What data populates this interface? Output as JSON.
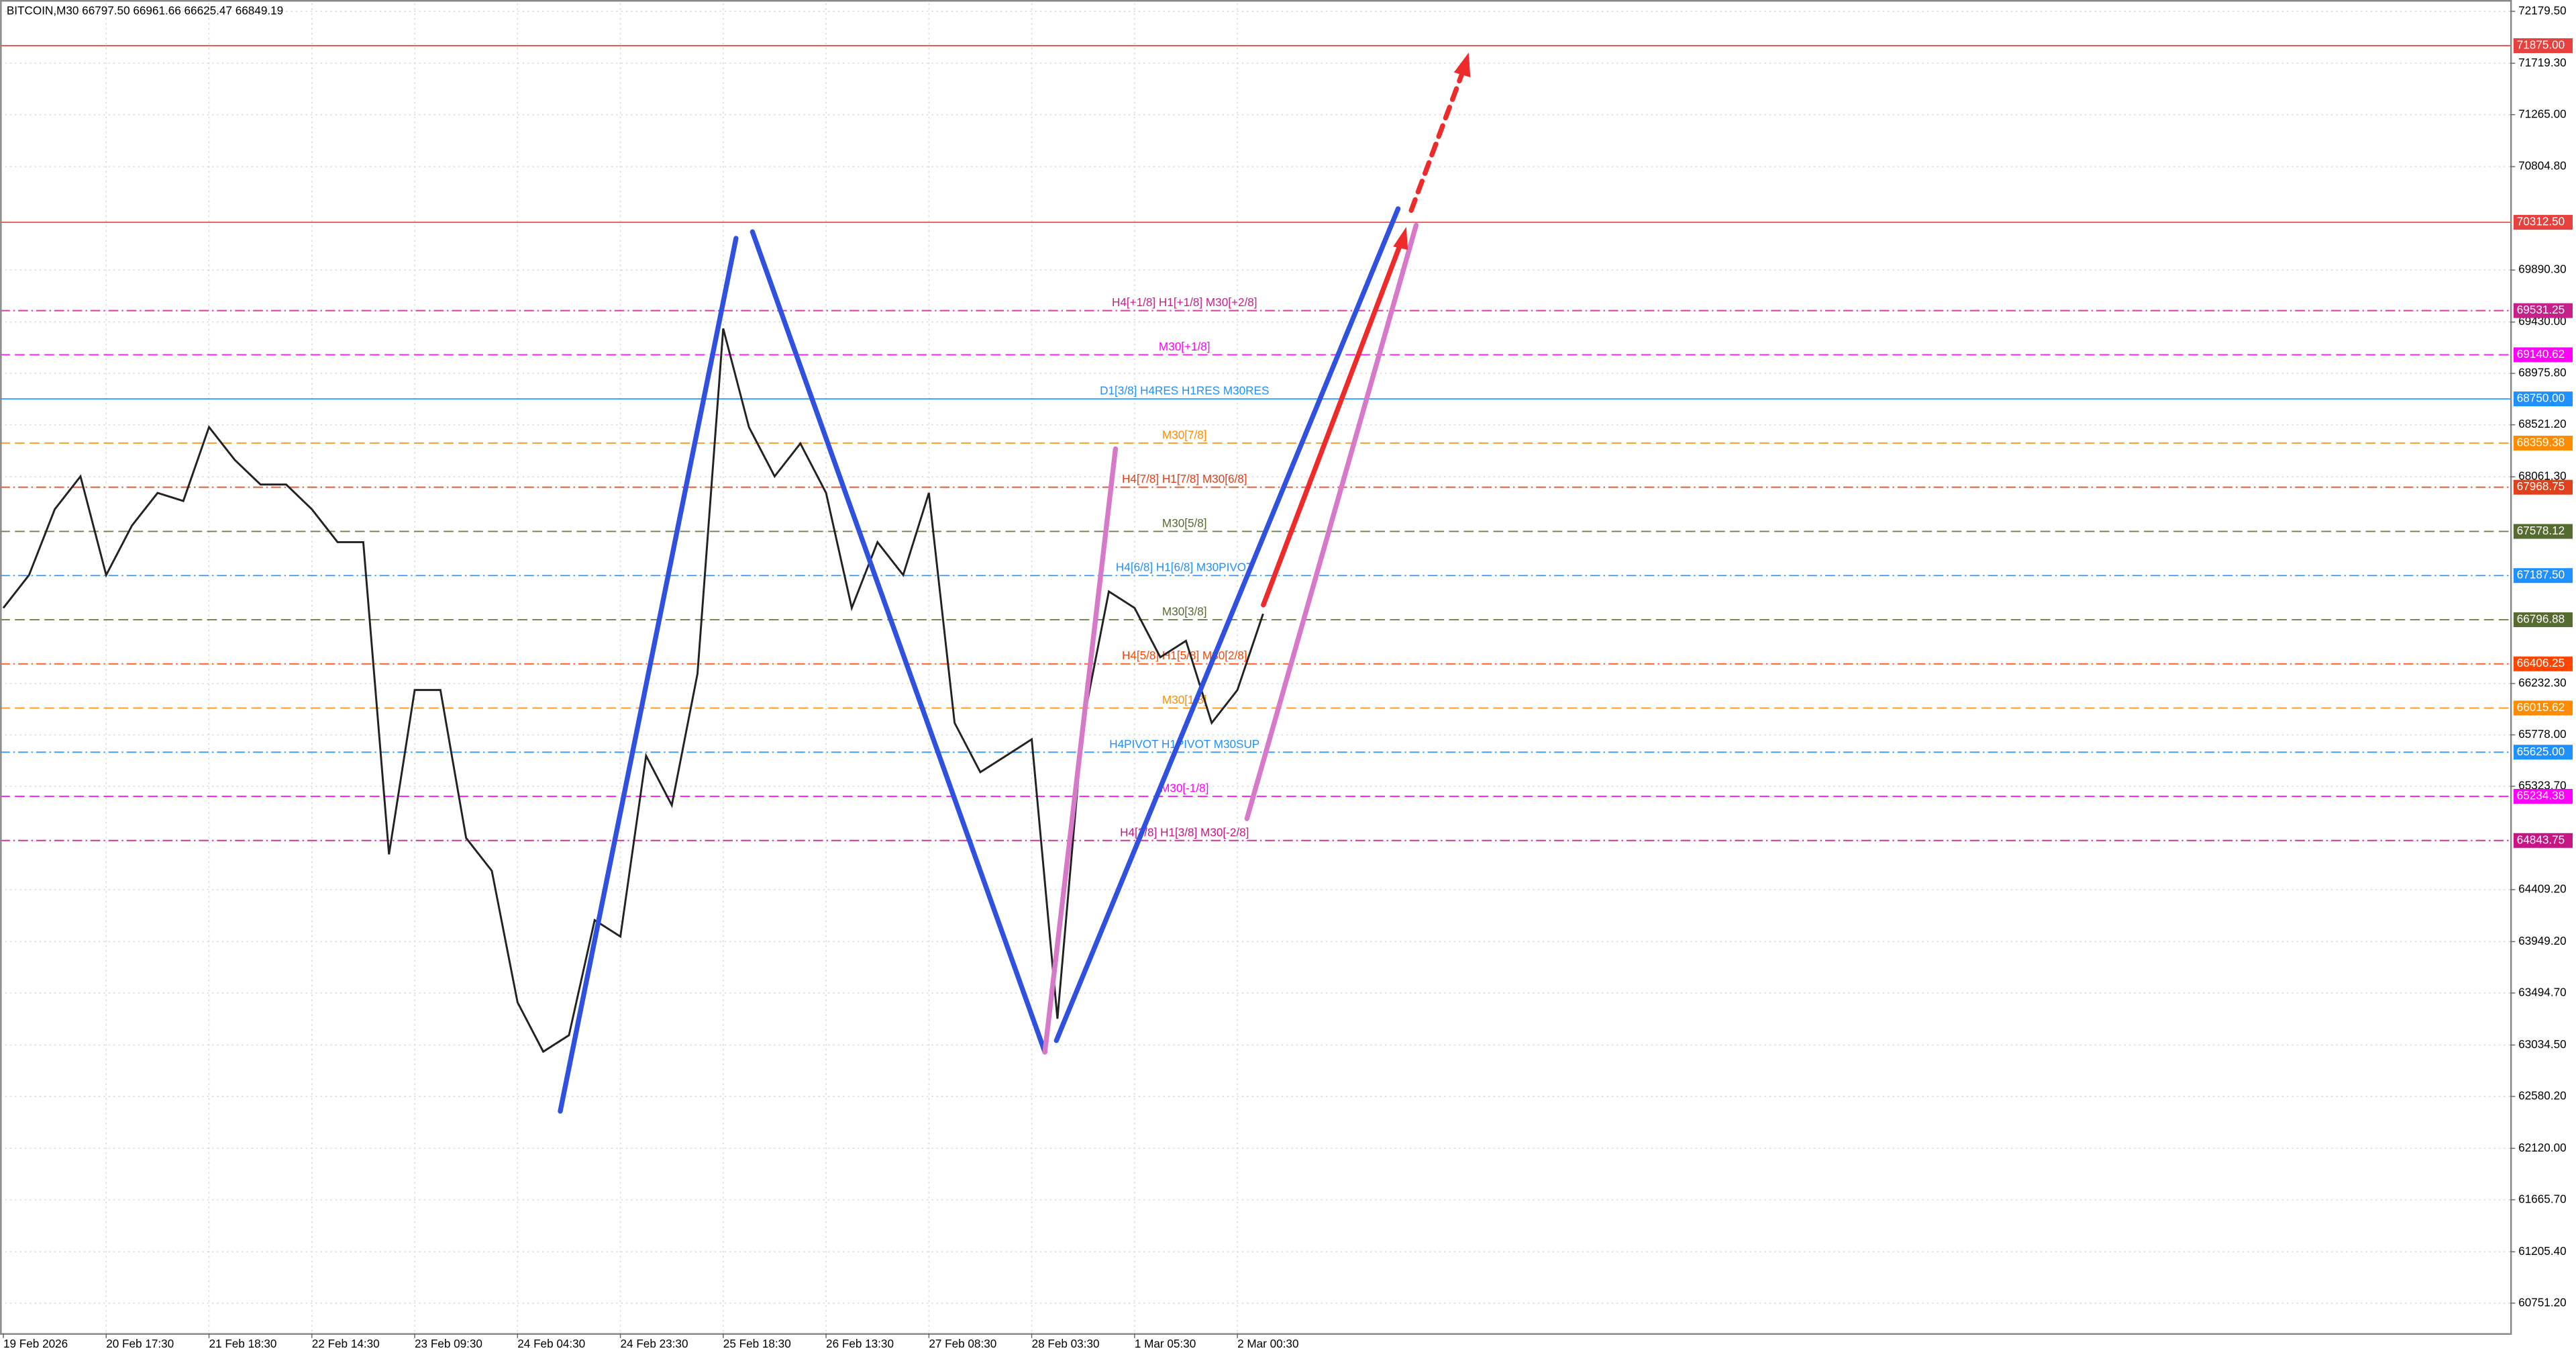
{
  "chart_data": {
    "type": "line",
    "title": "BITCOIN,M30  66797.50 66961.66 66625.47 66849.19",
    "categories": [
      "19 Feb 2026",
      null,
      null,
      null,
      "20 Feb 17:30",
      null,
      null,
      null,
      "21 Feb 18:30",
      null,
      null,
      null,
      "22 Feb 14:30",
      null,
      null,
      null,
      "23 Feb 09:30",
      null,
      null,
      null,
      "24 Feb 04:30",
      null,
      null,
      null,
      "24 Feb 23:30",
      null,
      null,
      null,
      "25 Feb 18:30",
      null,
      null,
      null,
      "26 Feb 13:30",
      null,
      null,
      null,
      "27 Feb 08:30",
      null,
      null,
      null,
      "28 Feb 03:30",
      null,
      null,
      null,
      "1 Mar 05:30",
      null,
      null,
      null,
      "2 Mar 00:30",
      null
    ],
    "series": [
      {
        "name": "BITCOIN",
        "color": "#222222",
        "values": [
          66901,
          67192,
          67774,
          68065,
          67192,
          67629,
          67919,
          67847,
          68501,
          68211,
          67993,
          67993,
          67774,
          67483,
          67483,
          64721,
          66175,
          66175,
          64866,
          64575,
          63412,
          62976,
          63121,
          64139,
          63994,
          65593,
          65156,
          66320,
          69373,
          68501,
          68065,
          68356,
          67919,
          66901,
          67483,
          67192,
          67919,
          65884,
          65448,
          65593,
          65739,
          63267,
          65884,
          67047,
          66901,
          66465,
          66610,
          65884,
          66175,
          66849.19
        ]
      }
    ],
    "ylim": [
      60500,
      72250
    ],
    "yticks": [
      {
        "value": 72179.5,
        "label": "72179.50"
      },
      {
        "value": 71719.3,
        "label": "71719.30"
      },
      {
        "value": 71265,
        "label": "71265.00"
      },
      {
        "value": 70804.8,
        "label": "70804.80"
      },
      {
        "value": 69890.3,
        "label": "69890.30"
      },
      {
        "value": 69430,
        "label": "69430.00"
      },
      {
        "value": 68975.8,
        "label": "68975.80"
      },
      {
        "value": 68521.2,
        "label": "68521.20"
      },
      {
        "value": 68061.3,
        "label": "68061.30"
      },
      {
        "value": 66232.3,
        "label": "66232.30"
      },
      {
        "value": 65778,
        "label": "65778.00"
      },
      {
        "value": 65323.7,
        "label": "65323.70"
      },
      {
        "value": 64409.2,
        "label": "64409.20"
      },
      {
        "value": 63949.2,
        "label": "63949.20"
      },
      {
        "value": 63494.7,
        "label": "63494.70"
      },
      {
        "value": 63034.5,
        "label": "63034.50"
      },
      {
        "value": 62580.2,
        "label": "62580.20"
      },
      {
        "value": 62120,
        "label": "62120.00"
      },
      {
        "value": 61665.7,
        "label": "61665.70"
      },
      {
        "value": 61205.4,
        "label": "61205.40"
      },
      {
        "value": 60751.2,
        "label": "60751.20"
      }
    ],
    "grid": true,
    "levels": [
      {
        "value": 71875,
        "label": "71875.00",
        "color": "#e8403c"
      },
      {
        "value": 70312.5,
        "label": "70312.50",
        "color": "#e8403c"
      },
      {
        "value": 69531.25,
        "label": "69531.25",
        "color": "#c8208a",
        "text": "H4[+1/8] H1[+1/8] M30[+2/8]"
      },
      {
        "value": 69140.62,
        "label": "69140.62",
        "color": "#ff00ff",
        "text": "M30[+1/8]"
      },
      {
        "value": 68750,
        "label": "68750.00",
        "color": "#1e90ff",
        "text": "D1[3/8] H4RES H1RES M30RES"
      },
      {
        "value": 68359.38,
        "label": "68359.38",
        "color": "#ff8c00",
        "text": "M30[7/8]"
      },
      {
        "value": 67968.75,
        "label": "67968.75",
        "color": "#e0401a",
        "text": "H4[7/8] H1[7/8] M30[6/8]"
      },
      {
        "value": 67578.12,
        "label": "67578.12",
        "color": "#556b2f",
        "text": "M30[5/8]"
      },
      {
        "value": 67187.5,
        "label": "67187.50",
        "color": "#1e90ff",
        "text": "H4[6/8] H1[6/8] M30PIVOT"
      },
      {
        "value": 66796.88,
        "label": "66796.88",
        "color": "#556b2f",
        "text": "M30[3/8]"
      },
      {
        "value": 66406.25,
        "label": "66406.25",
        "color": "#ff4500",
        "text": "H4[5/8] H1[5/8] M30[2/8]"
      },
      {
        "value": 66015.62,
        "label": "66015.62",
        "color": "#ff8c00",
        "text": "M30[1/8]"
      },
      {
        "value": 65625,
        "label": "65625.00",
        "color": "#1e90ff",
        "text": "H4PIVOT H1PIVOT M30SUP"
      },
      {
        "value": 65234.38,
        "label": "65234.38",
        "color": "#ff00ff",
        "text": "M30[-1/8]"
      },
      {
        "value": 64843.75,
        "label": "64843.75",
        "color": "#c71585",
        "text": "H4[3/8] H1[3/8] M30[-2/8]"
      }
    ]
  }
}
